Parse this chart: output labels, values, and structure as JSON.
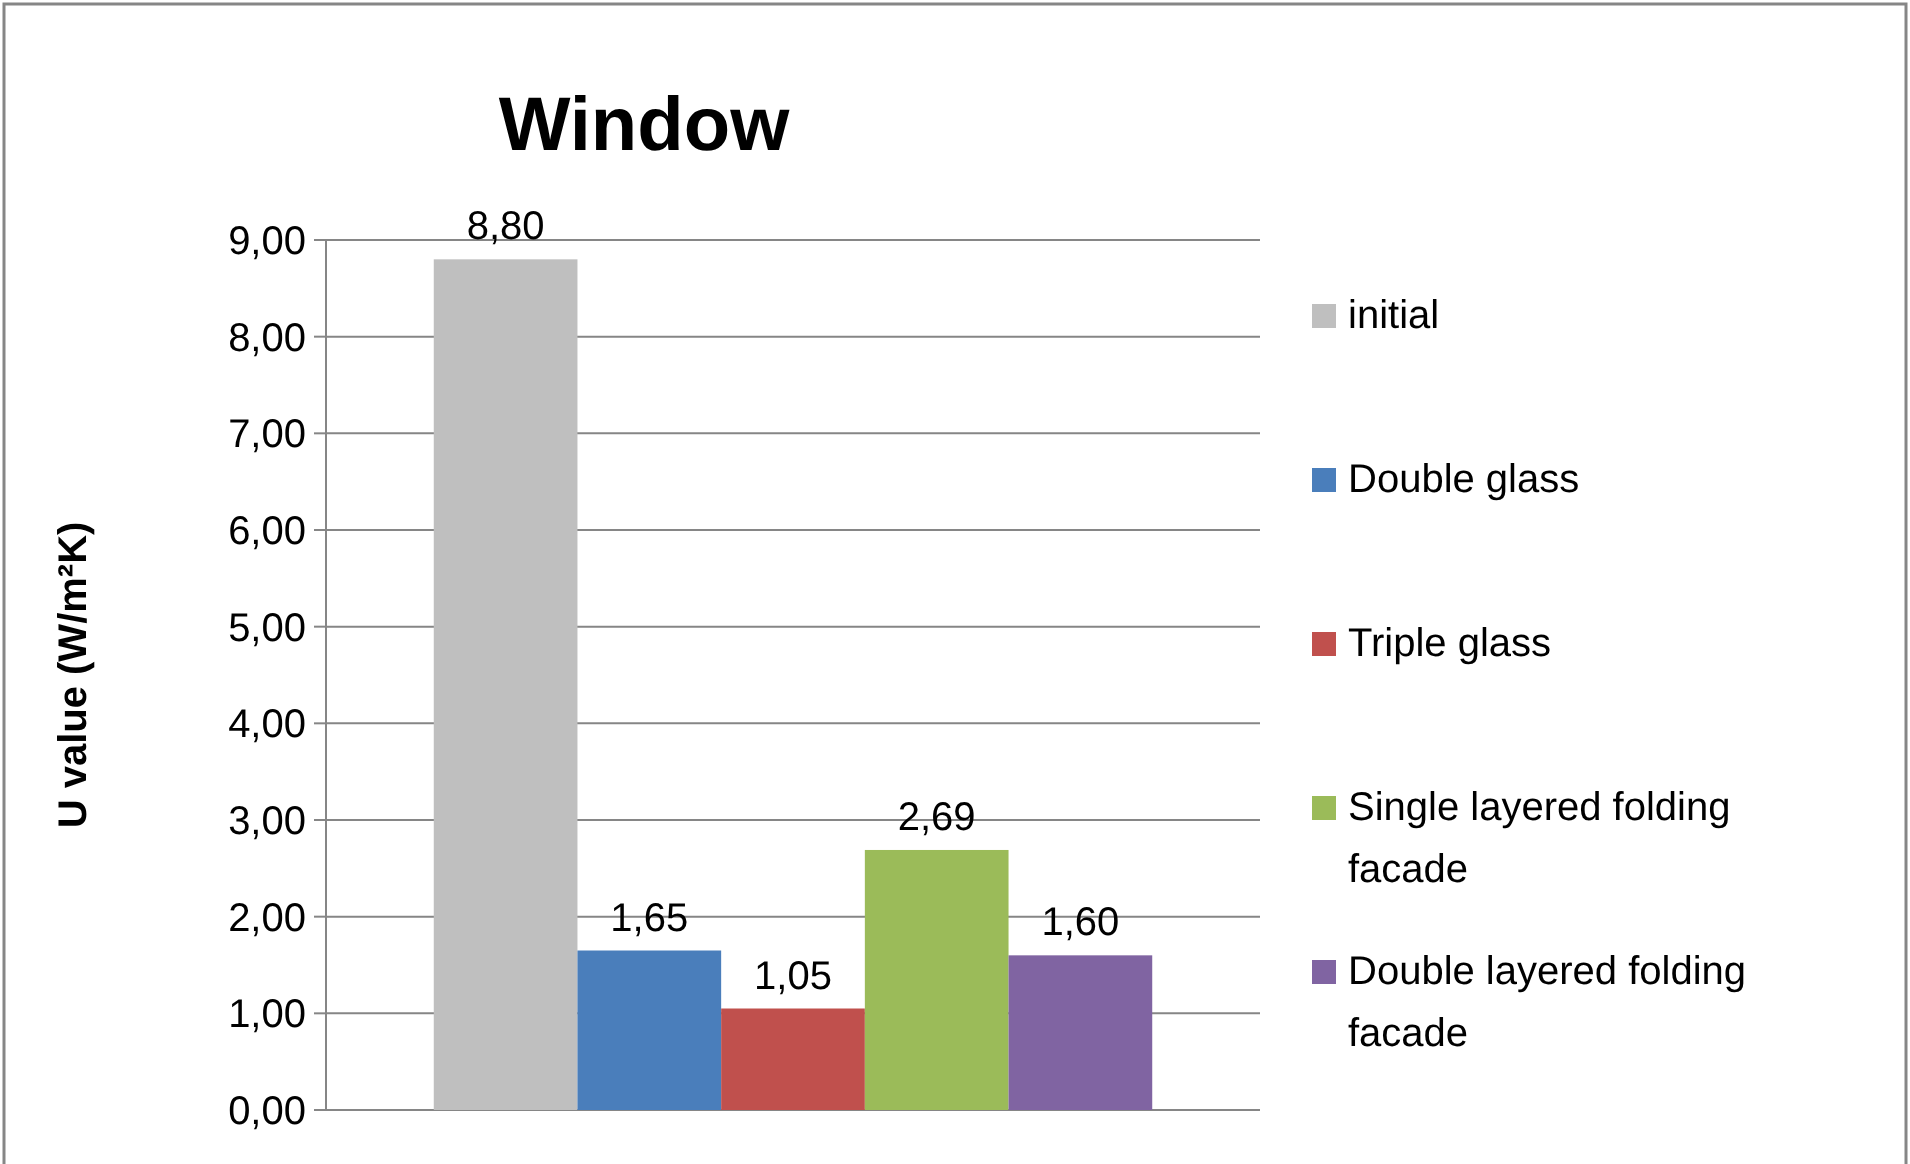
{
  "chart_data": {
    "type": "bar",
    "title": "Window",
    "ylabel": "U value (W/m²K)",
    "categories": [
      null
    ],
    "series": [
      {
        "name": "initial",
        "color": "#bfbfbf",
        "values": [
          8.8
        ],
        "value_labels": [
          "8,80"
        ]
      },
      {
        "name": "Double glass",
        "color": "#4a7ebb",
        "values": [
          1.65
        ],
        "value_labels": [
          "1,65"
        ]
      },
      {
        "name": "Triple glass",
        "color": "#c0504d",
        "values": [
          1.05
        ],
        "value_labels": [
          "1,05"
        ]
      },
      {
        "name": "Single layered folding facade",
        "color": "#9bbb59",
        "values": [
          2.69
        ],
        "value_labels": [
          "2,69"
        ]
      },
      {
        "name": "Double layered folding facade",
        "color": "#8064a2",
        "values": [
          1.6
        ],
        "value_labels": [
          "1,60"
        ]
      }
    ],
    "ylim": [
      0,
      9
    ],
    "yticks": [
      {
        "value": 0,
        "label": "0,00"
      },
      {
        "value": 1,
        "label": "1,00"
      },
      {
        "value": 2,
        "label": "2,00"
      },
      {
        "value": 3,
        "label": "3,00"
      },
      {
        "value": 4,
        "label": "4,00"
      },
      {
        "value": 5,
        "label": "5,00"
      },
      {
        "value": 6,
        "label": "6,00"
      },
      {
        "value": 7,
        "label": "7,00"
      },
      {
        "value": 8,
        "label": "8,00"
      },
      {
        "value": 9,
        "label": "9,00"
      }
    ],
    "grid": "y",
    "legend": "right"
  }
}
